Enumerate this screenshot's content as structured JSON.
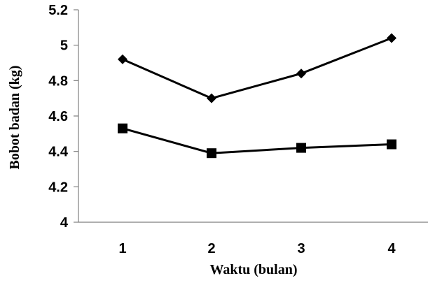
{
  "chart_data": {
    "type": "line",
    "title": "",
    "xlabel": "Waktu (bulan)",
    "ylabel": "Bobot badan (kg)",
    "categories": [
      "1",
      "2",
      "3",
      "4"
    ],
    "ylim": [
      4,
      5.2
    ],
    "yticks": [
      4,
      4.2,
      4.4,
      4.6,
      4.8,
      5,
      5.2
    ],
    "ytick_labels": [
      "4",
      "4.2",
      "4.4",
      "4.6",
      "4.8",
      "5",
      "5.2"
    ],
    "grid": false,
    "legend": "none",
    "series": [
      {
        "marker": "diamond",
        "color": "#000000",
        "values": [
          4.92,
          4.7,
          4.84,
          5.04
        ]
      },
      {
        "marker": "square",
        "color": "#000000",
        "values": [
          4.53,
          4.39,
          4.42,
          4.44
        ]
      }
    ]
  }
}
